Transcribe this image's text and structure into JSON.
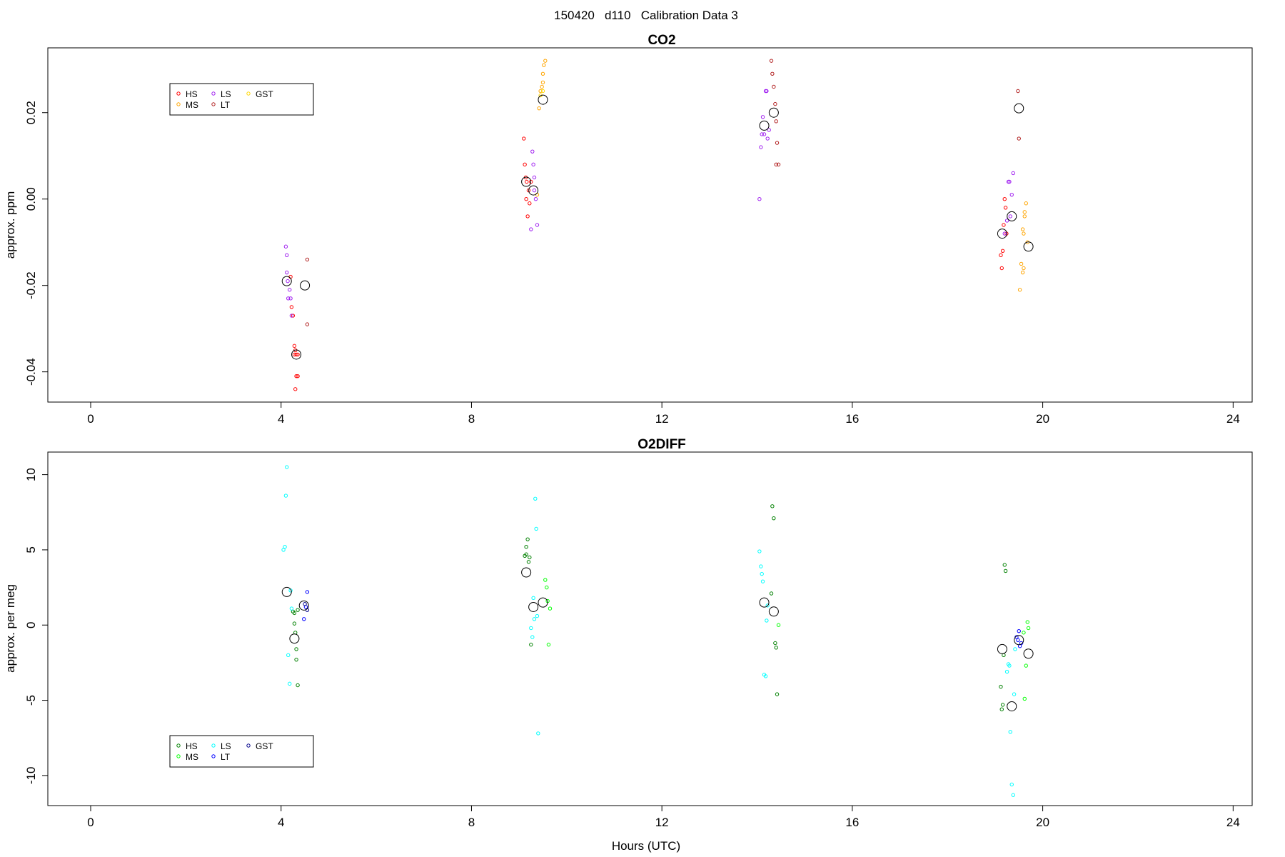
{
  "figure": {
    "title": "150420   d110   Calibration Data 3"
  },
  "chart_data": [
    {
      "type": "scatter",
      "title": "CO2",
      "xlabel": "",
      "ylabel": "approx. ppm",
      "xlim": [
        -0.9,
        24.4
      ],
      "ylim": [
        -0.047,
        0.035
      ],
      "xticks": [
        0,
        4,
        8,
        12,
        16,
        20,
        24
      ],
      "yticks": [
        -0.04,
        -0.02,
        0.0,
        0.02
      ],
      "ytick_labels": [
        "-0.04",
        "-0.02",
        "0.00",
        "0.02"
      ],
      "legend": {
        "placement": "top-left",
        "entries": [
          {
            "label": "HS",
            "color": "#ff0000"
          },
          {
            "label": "MS",
            "color": "#ffa500"
          },
          {
            "label": "LS",
            "color": "#a020f0"
          },
          {
            "label": "LT",
            "color": "#b22222"
          },
          {
            "label": "GST",
            "color": "#ffd700"
          }
        ]
      },
      "series": [
        {
          "color": "#ff0000",
          "x": [
            4.2,
            4.22,
            4.25,
            4.28,
            4.28,
            4.3,
            4.3,
            4.32,
            4.32,
            4.35,
            4.35,
            9.1,
            9.12,
            9.14,
            9.15,
            9.16,
            9.18,
            9.2,
            9.22,
            9.25,
            19.12,
            19.14,
            19.16,
            19.18,
            19.2,
            19.22,
            19.24
          ],
          "y": [
            -0.018,
            -0.025,
            -0.027,
            -0.034,
            -0.036,
            -0.035,
            -0.044,
            -0.041,
            -0.036,
            -0.041,
            -0.036,
            0.014,
            0.008,
            0.005,
            0.0,
            0.004,
            -0.004,
            0.002,
            -0.001,
            0.004,
            -0.013,
            -0.016,
            -0.012,
            -0.006,
            0.0,
            -0.002,
            -0.008
          ]
        },
        {
          "color": "#ffa500",
          "x": [
            9.42,
            9.45,
            9.48,
            9.5,
            9.5,
            9.52,
            9.55,
            9.38,
            19.52,
            19.55,
            19.58,
            19.6,
            19.6,
            19.62,
            19.65,
            19.68,
            19.58,
            19.62
          ],
          "y": [
            0.021,
            0.025,
            0.026,
            0.027,
            0.029,
            0.031,
            0.032,
            0.001,
            -0.021,
            -0.015,
            -0.017,
            -0.016,
            -0.008,
            -0.003,
            -0.001,
            -0.01,
            -0.007,
            -0.004
          ]
        },
        {
          "color": "#a020f0",
          "x": [
            4.1,
            4.12,
            4.12,
            4.14,
            4.15,
            4.18,
            4.2,
            4.22,
            9.25,
            9.28,
            9.3,
            9.32,
            9.32,
            9.35,
            9.38,
            14.05,
            14.08,
            14.1,
            14.12,
            14.15,
            14.18,
            14.2,
            14.22,
            14.25,
            19.2,
            19.25,
            19.28,
            19.3,
            19.32,
            19.35,
            19.38
          ],
          "y": [
            -0.011,
            -0.013,
            -0.017,
            -0.019,
            -0.023,
            -0.021,
            -0.023,
            -0.027,
            -0.007,
            0.011,
            0.008,
            0.005,
            0.002,
            0.0,
            -0.006,
            0.0,
            0.012,
            0.015,
            0.019,
            0.015,
            0.025,
            0.025,
            0.014,
            0.016,
            -0.008,
            -0.005,
            0.004,
            0.004,
            -0.004,
            0.001,
            0.006
          ]
        },
        {
          "color": "#b22222",
          "x": [
            4.55,
            4.55,
            14.3,
            14.32,
            14.35,
            14.38,
            14.4,
            14.42,
            14.4,
            14.45,
            19.48,
            19.5
          ],
          "y": [
            -0.014,
            -0.029,
            0.032,
            0.029,
            0.026,
            0.022,
            0.018,
            0.013,
            0.008,
            0.008,
            0.025,
            0.014
          ]
        },
        {
          "color": "#ffd700",
          "x": [
            9.45,
            9.5
          ],
          "y": [
            0.024,
            0.025
          ]
        }
      ],
      "means": {
        "x": [
          4.12,
          4.32,
          4.5,
          9.15,
          9.3,
          9.5,
          14.15,
          14.35,
          19.15,
          19.35,
          19.5,
          19.7
        ],
        "y": [
          -0.019,
          -0.036,
          -0.02,
          0.004,
          0.002,
          0.023,
          0.017,
          0.02,
          -0.008,
          -0.004,
          0.021,
          -0.011
        ]
      }
    },
    {
      "type": "scatter",
      "title": "O2DIFF",
      "xlabel": "Hours (UTC)",
      "ylabel": "approx. per meg",
      "xlim": [
        -0.9,
        24.4
      ],
      "ylim": [
        -12.0,
        11.5
      ],
      "xticks": [
        0,
        4,
        8,
        12,
        16,
        20,
        24
      ],
      "yticks": [
        -10,
        -5,
        0,
        5,
        10
      ],
      "ytick_labels": [
        "-10",
        "-5",
        "0",
        "5",
        "10"
      ],
      "legend": {
        "placement": "bottom-left",
        "entries": [
          {
            "label": "HS",
            "color": "#008000"
          },
          {
            "label": "MS",
            "color": "#00ff00"
          },
          {
            "label": "LS",
            "color": "#00ffff"
          },
          {
            "label": "LT",
            "color": "#0000ff"
          },
          {
            "label": "GST",
            "color": "#00008b"
          }
        ]
      },
      "series": [
        {
          "color": "#008000",
          "x": [
            4.25,
            4.28,
            4.28,
            4.3,
            4.32,
            4.32,
            4.35,
            4.35,
            9.12,
            9.15,
            9.15,
            9.18,
            9.2,
            9.22,
            9.25,
            14.3,
            14.32,
            14.35,
            14.38,
            14.4,
            14.42,
            19.12,
            19.14,
            19.16,
            19.18,
            19.2,
            19.22
          ],
          "y": [
            0.9,
            0.8,
            0.1,
            -0.5,
            -1.6,
            -2.3,
            -4.0,
            1.0,
            4.6,
            4.7,
            5.2,
            5.7,
            4.2,
            4.5,
            -1.3,
            2.1,
            7.9,
            7.1,
            -1.2,
            -1.5,
            -4.6,
            -4.1,
            -5.6,
            -5.3,
            -2.0,
            4.0,
            3.6
          ]
        },
        {
          "color": "#00ff00",
          "x": [
            9.55,
            9.58,
            9.6,
            9.62,
            9.65,
            14.45,
            19.6,
            19.62,
            19.65,
            19.68,
            19.7
          ],
          "y": [
            3.0,
            2.5,
            1.6,
            -1.3,
            1.1,
            0.0,
            -0.5,
            -4.9,
            -2.7,
            0.2,
            -0.2
          ]
        },
        {
          "color": "#00ffff",
          "x": [
            4.05,
            4.08,
            4.1,
            4.12,
            4.15,
            4.18,
            4.2,
            4.22,
            9.25,
            9.28,
            9.3,
            9.32,
            9.34,
            9.36,
            9.38,
            9.4,
            14.05,
            14.08,
            14.1,
            14.12,
            14.15,
            14.18,
            14.2,
            14.22,
            19.25,
            19.28,
            19.3,
            19.32,
            19.35,
            19.38,
            19.4,
            19.42
          ],
          "y": [
            5.0,
            5.2,
            8.6,
            10.5,
            -2.0,
            -3.9,
            2.3,
            1.1,
            -0.2,
            -0.8,
            1.8,
            0.4,
            8.4,
            6.4,
            0.6,
            -7.2,
            4.9,
            3.9,
            3.4,
            2.9,
            -3.3,
            -3.4,
            0.3,
            1.3,
            -3.1,
            -2.6,
            -2.7,
            -7.1,
            -10.6,
            -11.3,
            -4.6,
            -1.6
          ]
        },
        {
          "color": "#0000ff",
          "x": [
            4.48,
            4.52,
            4.55,
            19.45,
            19.48,
            19.5,
            19.52,
            19.55
          ],
          "y": [
            0.4,
            1.2,
            2.2,
            -0.8,
            -1.0,
            -0.4,
            -1.4,
            -1.2
          ]
        },
        {
          "color": "#00008b",
          "x": [
            4.5,
            4.55
          ],
          "y": [
            1.4,
            1.0
          ]
        }
      ],
      "means": {
        "x": [
          4.12,
          4.28,
          4.48,
          9.15,
          9.3,
          9.5,
          14.15,
          14.35,
          19.15,
          19.35,
          19.5,
          19.7
        ],
        "y": [
          2.2,
          -0.9,
          1.3,
          3.5,
          1.2,
          1.5,
          1.5,
          0.9,
          -1.6,
          -5.4,
          -1.0,
          -1.9
        ]
      }
    }
  ]
}
